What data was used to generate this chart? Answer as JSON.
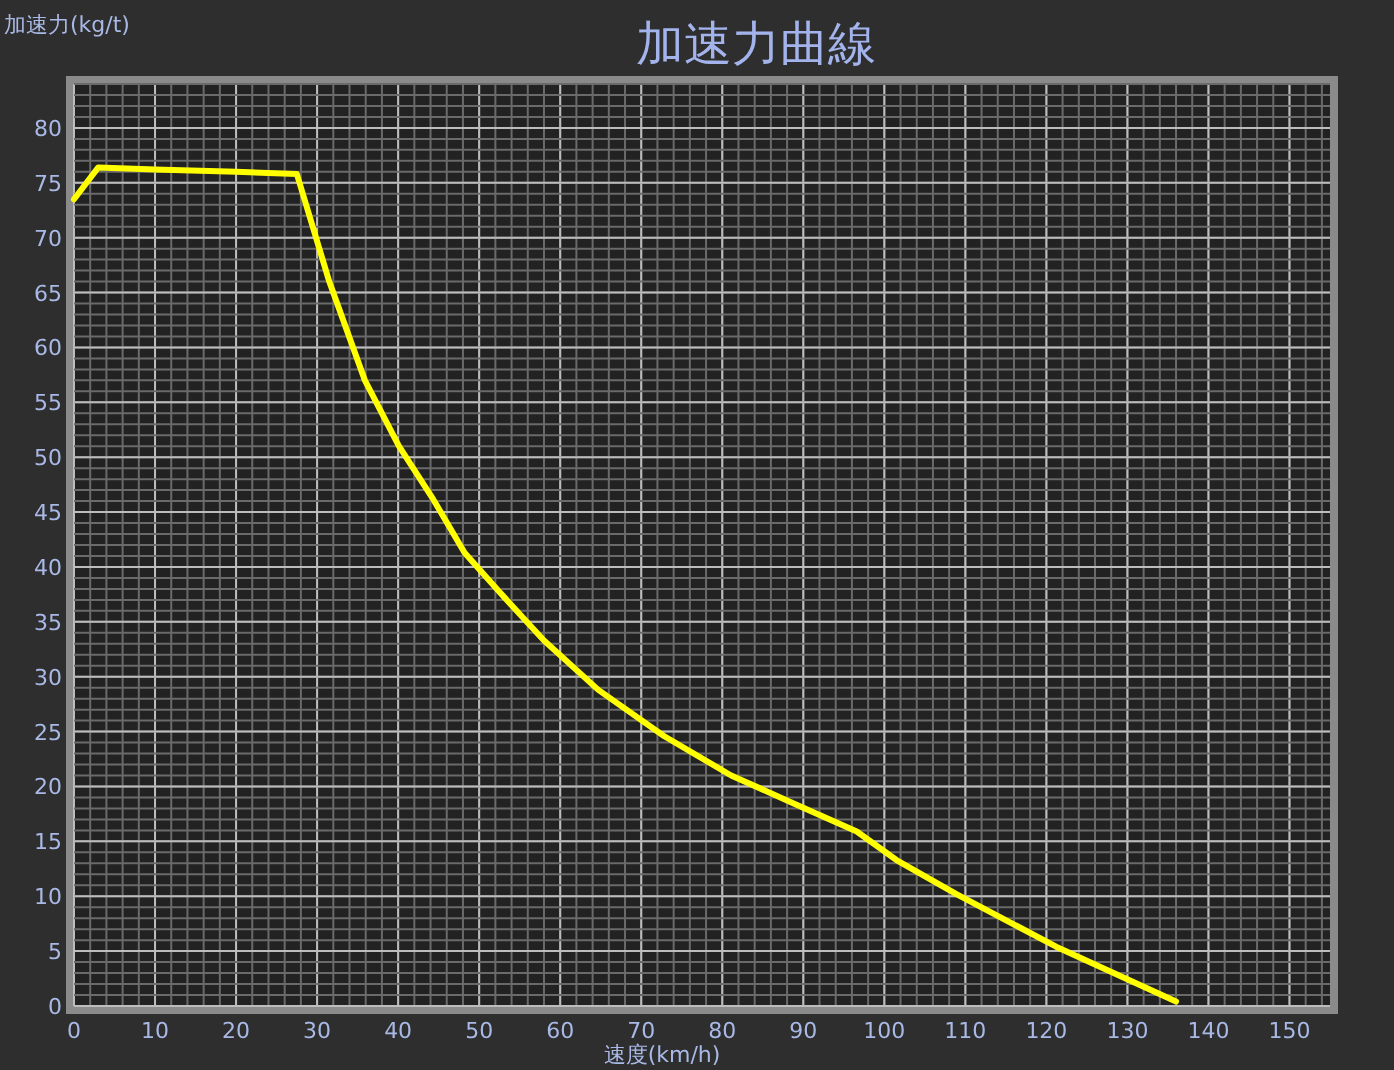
{
  "chart_data": {
    "type": "line",
    "title": "加速力曲線",
    "xlabel": "速度(km/h)",
    "ylabel": "加速力(kg/t)",
    "xlim": [
      0,
      155
    ],
    "ylim": [
      0,
      84
    ],
    "xticks": [
      0,
      10,
      20,
      30,
      40,
      50,
      60,
      70,
      80,
      90,
      100,
      110,
      120,
      130,
      140,
      150
    ],
    "yticks": [
      0,
      5,
      10,
      15,
      20,
      25,
      30,
      35,
      40,
      45,
      50,
      55,
      60,
      65,
      70,
      75,
      80
    ],
    "grid": true,
    "marker": "none",
    "line_style": "solid",
    "series": [
      {
        "color": "#ffff00",
        "x": [
          0,
          3,
          10,
          20,
          27.5,
          31.5,
          35.9,
          40.1,
          44.3,
          48.2,
          52.4,
          58,
          64.7,
          72.8,
          81.1,
          89.3,
          96.6,
          101.5,
          108.9,
          121.2,
          136
        ],
        "values": [
          73.5,
          76.4,
          76.2,
          76,
          75.8,
          66,
          57,
          51,
          46.2,
          41.3,
          37.8,
          33.3,
          28.8,
          24.6,
          21,
          18.3,
          15.9,
          13.3,
          10.2,
          5.4,
          0.4
        ]
      }
    ]
  }
}
